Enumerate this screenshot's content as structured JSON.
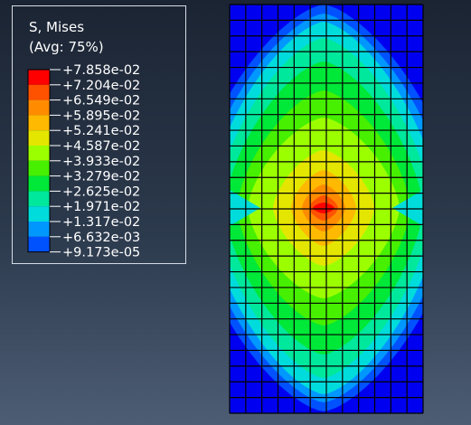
{
  "legend": {
    "variable": "S, Mises",
    "averaging": "(Avg: 75%)",
    "levels": [
      {
        "label": "+7.858e-02",
        "color": "#ff0000"
      },
      {
        "label": "+7.204e-02",
        "color": "#ff5200"
      },
      {
        "label": "+6.549e-02",
        "color": "#ff8c00"
      },
      {
        "label": "+5.895e-02",
        "color": "#ffb900"
      },
      {
        "label": "+5.241e-02",
        "color": "#e4e600"
      },
      {
        "label": "+4.587e-02",
        "color": "#9cff00"
      },
      {
        "label": "+3.933e-02",
        "color": "#46f000"
      },
      {
        "label": "+3.279e-02",
        "color": "#00e838"
      },
      {
        "label": "+2.625e-02",
        "color": "#00e89c"
      },
      {
        "label": "+1.971e-02",
        "color": "#00dcdc"
      },
      {
        "label": "+1.317e-02",
        "color": "#0098ff"
      },
      {
        "label": "+6.632e-03",
        "color": "#0052ff"
      },
      {
        "label": "+9.173e-05",
        "color": "#0000f0"
      }
    ]
  },
  "contour_plot": {
    "mesh_columns": 12,
    "mesh_rows": 26
  }
}
